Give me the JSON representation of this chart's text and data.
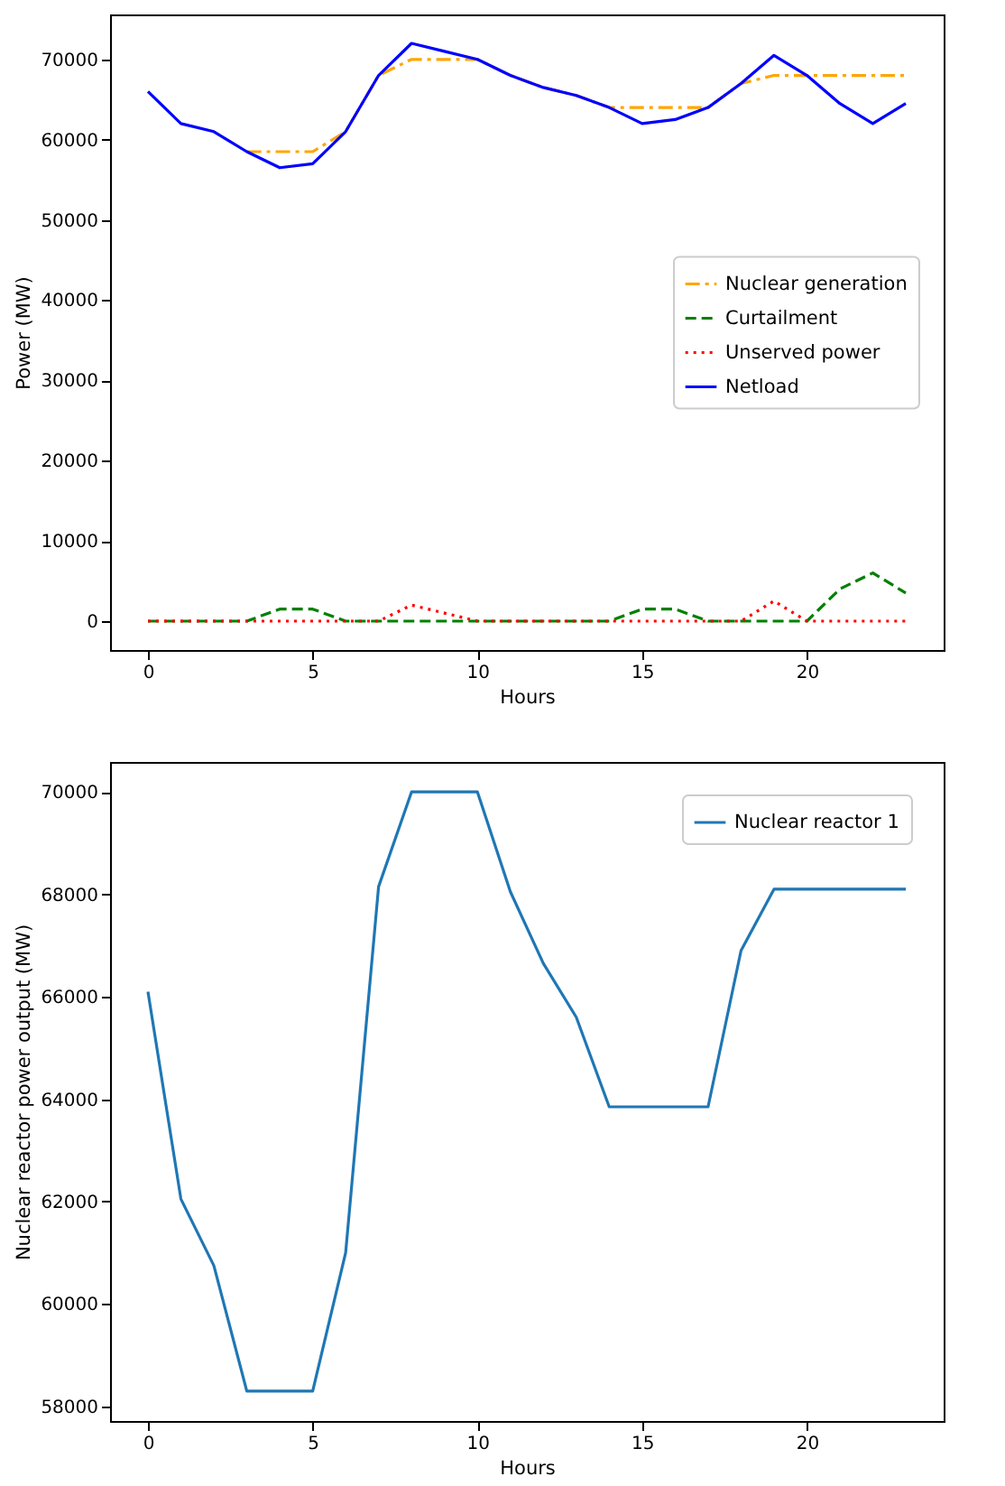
{
  "chart_data": [
    {
      "type": "line",
      "xlabel": "Hours",
      "ylabel": "Power (MW)",
      "x": [
        0,
        1,
        2,
        3,
        4,
        5,
        6,
        7,
        8,
        9,
        10,
        11,
        12,
        13,
        14,
        15,
        16,
        17,
        18,
        19,
        20,
        21,
        22,
        23
      ],
      "xlim": [
        -1.15,
        24.15
      ],
      "xticks": [
        0,
        5,
        10,
        15,
        20
      ],
      "ylim": [
        -3600,
        75600
      ],
      "yticks": [
        0,
        10000,
        20000,
        30000,
        40000,
        50000,
        60000,
        70000
      ],
      "grid": false,
      "legend": "right",
      "marker": "none",
      "series": [
        {
          "name": "Nuclear generation",
          "color": "#ffa500",
          "line_style": "dashdot",
          "values": [
            null,
            null,
            null,
            58500,
            58500,
            58500,
            61000,
            68000,
            70000,
            70000,
            70000,
            68000,
            66500,
            65500,
            64000,
            64000,
            64000,
            64000,
            67000,
            68000,
            68000,
            68000,
            68000,
            68000
          ]
        },
        {
          "name": "Curtailment",
          "color": "#008000",
          "line_style": "dashed",
          "values": [
            0,
            0,
            0,
            0,
            1500,
            1500,
            0,
            0,
            0,
            0,
            0,
            0,
            0,
            0,
            0,
            1500,
            1500,
            0,
            0,
            0,
            0,
            4000,
            6000,
            3500
          ]
        },
        {
          "name": "Unserved power",
          "color": "#ff0000",
          "line_style": "dotted",
          "values": [
            0,
            0,
            0,
            0,
            0,
            0,
            0,
            0,
            2000,
            1000,
            0,
            0,
            0,
            0,
            0,
            0,
            0,
            0,
            0,
            2500,
            0,
            0,
            0,
            0
          ]
        },
        {
          "name": "Netload",
          "color": "#0000ff",
          "line_style": "solid",
          "values": [
            66000,
            62000,
            61000,
            58500,
            56500,
            57000,
            61000,
            68000,
            72000,
            71000,
            70000,
            68000,
            66500,
            65500,
            64000,
            62000,
            62500,
            64000,
            67000,
            70500,
            68000,
            64500,
            62000,
            64500
          ]
        }
      ]
    },
    {
      "type": "line",
      "xlabel": "Hours",
      "ylabel": "Nuclear reactor power output (MW)",
      "x": [
        0,
        1,
        2,
        3,
        4,
        5,
        6,
        7,
        8,
        9,
        10,
        11,
        12,
        13,
        14,
        15,
        16,
        17,
        18,
        19,
        20,
        21,
        22,
        23
      ],
      "xlim": [
        -1.15,
        24.15
      ],
      "xticks": [
        0,
        5,
        10,
        15,
        20
      ],
      "ylim": [
        57715,
        70585
      ],
      "yticks": [
        58000,
        60000,
        62000,
        64000,
        66000,
        68000,
        70000
      ],
      "grid": false,
      "legend": "top right",
      "marker": "none",
      "series": [
        {
          "name": "Nuclear reactor 1",
          "color": "#1f77b4",
          "line_style": "solid",
          "values": [
            66100,
            62050,
            60750,
            58300,
            58300,
            58300,
            61000,
            68150,
            70000,
            70000,
            70000,
            68050,
            66650,
            65600,
            63850,
            63850,
            63850,
            63850,
            66900,
            68100,
            68100,
            68100,
            68100,
            68100
          ]
        }
      ]
    }
  ]
}
